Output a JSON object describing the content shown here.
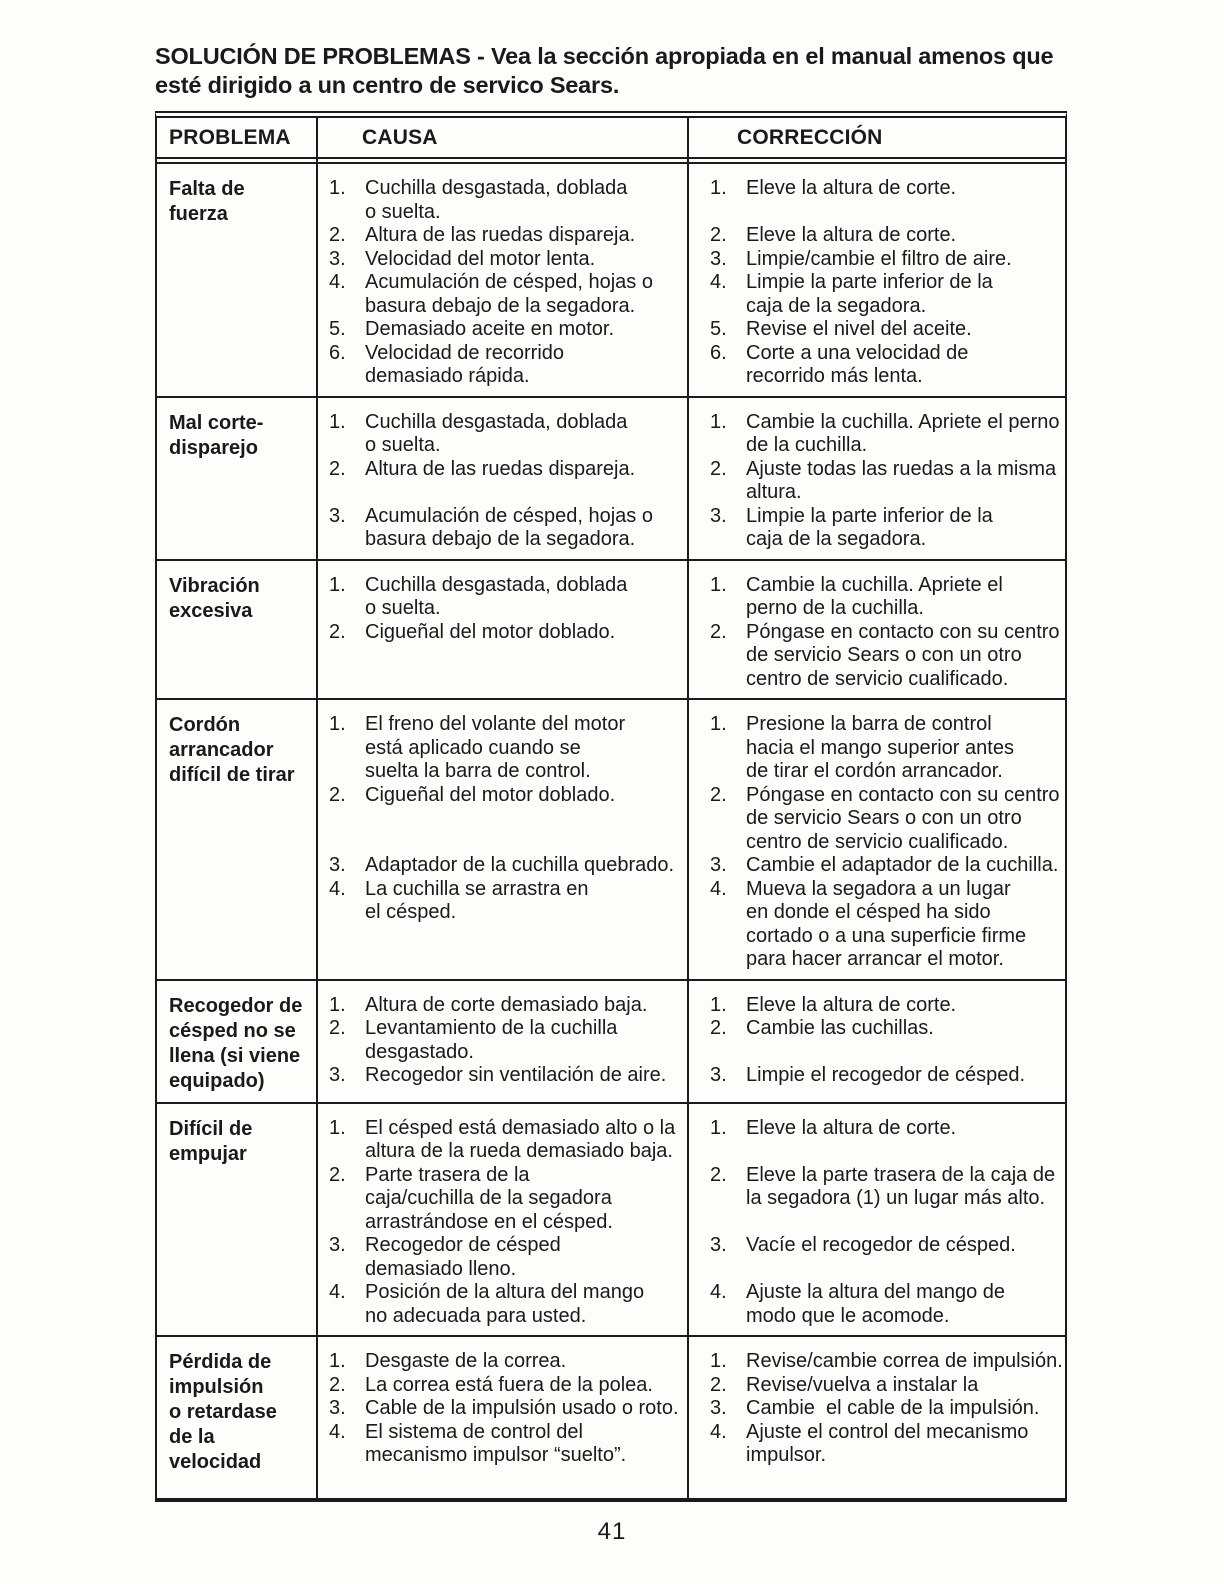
{
  "title": "SOLUCIÓN DE PROBLEMAS - Vea la sección apropiada en el manual amenos que\nesté dirigido a un centro de servico Sears.",
  "page_number": "41",
  "table": {
    "headers": [
      "PROBLEMA",
      "CAUSA",
      "CORRECCIÓN"
    ],
    "rows": [
      {
        "problem": "Falta de\nfuerza",
        "items": [
          {
            "n": "1.",
            "cause": "Cuchilla desgastada, doblada\no suelta.",
            "correction": "Eleve la altura de corte."
          },
          {
            "n": "2.",
            "cause": "Altura de las ruedas dispareja.",
            "correction": "Eleve la altura de corte."
          },
          {
            "n": "3.",
            "cause": "Velocidad del motor lenta.",
            "correction": "Limpie/cambie el filtro de aire."
          },
          {
            "n": "4.",
            "cause": "Acumulación de césped, hojas o\nbasura debajo de la segadora.",
            "correction": "Limpie la parte inferior de la\ncaja de la segadora."
          },
          {
            "n": "5.",
            "cause": "Demasiado aceite en motor.",
            "correction": "Revise el nivel del aceite."
          },
          {
            "n": "6.",
            "cause": "Velocidad de recorrido\ndemasiado rápida.",
            "correction": "Corte a una velocidad de\nrecorrido más lenta."
          }
        ]
      },
      {
        "problem": "Mal corte-\ndisparejo",
        "items": [
          {
            "n": "1.",
            "cause": "Cuchilla desgastada, doblada\no suelta.",
            "correction": "Cambie la cuchilla. Apriete el perno\nde la cuchilla."
          },
          {
            "n": "2.",
            "cause": "Altura de las ruedas dispareja.",
            "correction": "Ajuste todas las ruedas a la misma\naltura."
          },
          {
            "n": "3.",
            "cause": "Acumulación de césped, hojas o\nbasura debajo de la segadora.",
            "correction": "Limpie la parte inferior de la\ncaja de la segadora."
          }
        ]
      },
      {
        "problem": "Vibración\nexcesiva",
        "items": [
          {
            "n": "1.",
            "cause": "Cuchilla desgastada, doblada\no suelta.",
            "correction": "Cambie la cuchilla. Apriete el\nperno de la cuchilla."
          },
          {
            "n": "2.",
            "cause": "Cigueñal del motor doblado.",
            "correction": "Póngase en contacto con su centro\nde servicio Sears o con un otro\ncentro de servicio cualificado."
          }
        ]
      },
      {
        "problem": "Cordón\narrancador\ndifícil de tirar",
        "items": [
          {
            "n": "1.",
            "cause": "El freno del volante del motor\nestá aplicado cuando se\nsuelta la barra de control.",
            "correction": "Presione la barra de control\nhacia el mango superior antes\nde tirar el cordón arrancador."
          },
          {
            "n": "2.",
            "cause": "Cigueñal del motor doblado.",
            "correction": "Póngase en contacto con su centro\nde servicio Sears o con un otro\ncentro de servicio cualificado."
          },
          {
            "n": "3.",
            "cause": "Adaptador de la cuchilla quebrado.",
            "correction": "Cambie el adaptador de la cuchilla."
          },
          {
            "n": "4.",
            "cause": "La cuchilla se arrastra en\nel césped.",
            "correction": "Mueva la segadora a un lugar\nen donde el césped ha sido\ncortado o a una superficie firme\npara hacer arrancar el motor."
          }
        ]
      },
      {
        "problem": "Recogedor de\ncésped no se\nllena (si viene\nequipado)",
        "items": [
          {
            "n": "1.",
            "cause": "Altura de corte demasiado baja.",
            "correction": "Eleve la altura de corte."
          },
          {
            "n": "2.",
            "cause": "Levantamiento de la cuchilla\ndesgastado.",
            "correction": "Cambie las cuchillas."
          },
          {
            "n": "3.",
            "cause": "Recogedor sin ventilación de aire.",
            "correction": "Limpie el recogedor de césped."
          }
        ]
      },
      {
        "problem": "Difícil de\nempujar",
        "items": [
          {
            "n": "1.",
            "cause": "El césped está demasiado alto o la\naltura de la rueda demasiado baja.",
            "correction": "Eleve la altura de corte."
          },
          {
            "n": "2.",
            "cause": "Parte trasera de la\ncaja/cuchilla de la segadora\narrastrándose en el césped.",
            "correction": "Eleve la parte trasera de la caja de\nla segadora (1) un lugar más alto."
          },
          {
            "n": "3.",
            "cause": "Recogedor de césped\ndemasiado lleno.",
            "correction": "Vacíe el recogedor de césped."
          },
          {
            "n": "4.",
            "cause": "Posición de la altura del mango\nno adecuada para usted.",
            "correction": "Ajuste la altura del mango de\nmodo que le acomode."
          }
        ]
      },
      {
        "problem": "Pérdida de\nimpulsión\no retardase\nde la\nvelocidad",
        "items": [
          {
            "n": "1.",
            "cause": "Desgaste de la correa.",
            "correction": "Revise/cambie correa de impulsión."
          },
          {
            "n": "2.",
            "cause": "La correa está fuera de la polea.",
            "correction": "Revise/vuelva a instalar la"
          },
          {
            "n": "3.",
            "cause": "Cable de la impulsión usado o roto.",
            "correction": "Cambie  el cable de la impulsión."
          },
          {
            "n": "4.",
            "cause": "El sistema de control del\nmecanismo impulsor “suelto”.",
            "correction": "Ajuste el control del mecanismo\nimpulsor."
          }
        ]
      }
    ]
  }
}
